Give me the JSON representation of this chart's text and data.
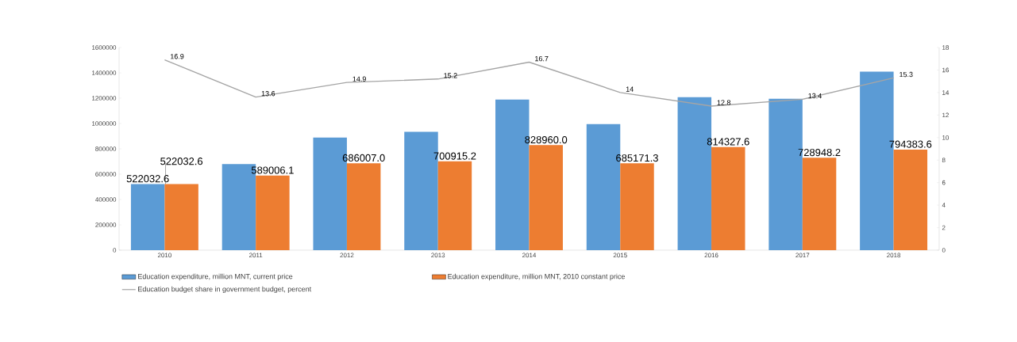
{
  "chart_data": {
    "type": "bar",
    "categories": [
      "2010",
      "2011",
      "2012",
      "2013",
      "2014",
      "2015",
      "2016",
      "2017",
      "2018"
    ],
    "series": [
      {
        "name": "Education expenditure, million MNT, current price",
        "color": "#5b9bd5",
        "values": [
          522032.6,
          680000,
          889000,
          935000,
          1189000,
          995000,
          1208000,
          1195000,
          1410000
        ],
        "value_labels": [
          "522032.6",
          null,
          null,
          null,
          null,
          null,
          null,
          null,
          null
        ]
      },
      {
        "name": "Education expenditure, million MNT, 2010 constant price",
        "color": "#ed7d31",
        "values": [
          522032.6,
          589006.1,
          686007.0,
          700915.2,
          828960.0,
          685171.3,
          814327.6,
          728948.2,
          794383.6
        ],
        "value_labels": [
          "522032.6",
          "589006.1",
          "686007.0",
          "700915.2",
          "828960.0",
          "685171.3",
          "814327.6",
          "728948.2",
          "794383.6"
        ]
      },
      {
        "name": "Education budget share in government budget, percent",
        "type": "line",
        "axis": "y2",
        "color": "#a5a5a5",
        "values": [
          16.9,
          13.6,
          14.9,
          15.2,
          16.7,
          14,
          12.8,
          13.4,
          15.3
        ],
        "value_labels": [
          "16.9",
          "13.6",
          "14.9",
          "15.2",
          "16.7",
          "14",
          "12.8",
          "13.4",
          "15.3"
        ]
      }
    ],
    "ylim": [
      0,
      1600000
    ],
    "yticks": [
      0,
      200000,
      400000,
      600000,
      800000,
      1000000,
      1200000,
      1400000,
      1600000
    ],
    "y2lim": [
      0,
      18
    ],
    "y2ticks": [
      0,
      2,
      4,
      6,
      8,
      10,
      12,
      14,
      16,
      18
    ],
    "legend": "bottom"
  }
}
